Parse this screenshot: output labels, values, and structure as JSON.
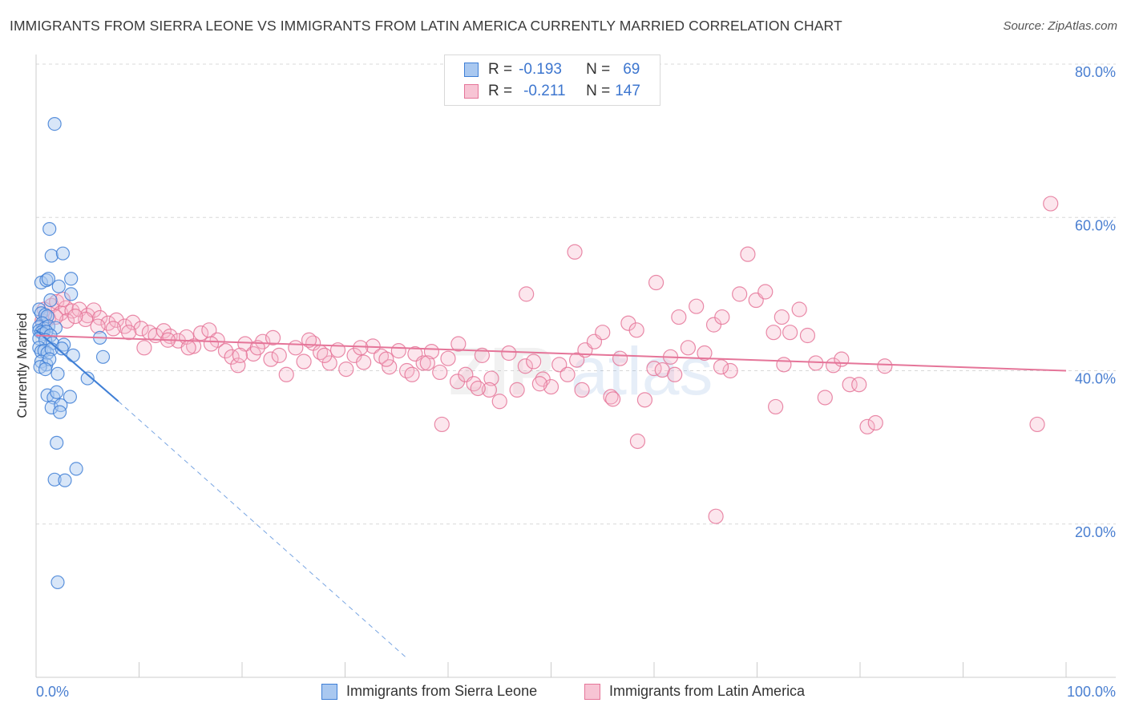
{
  "title": "IMMIGRANTS FROM SIERRA LEONE VS IMMIGRANTS FROM LATIN AMERICA CURRENTLY MARRIED CORRELATION CHART",
  "source": "Source: ZipAtlas.com",
  "legend": {
    "rows": [
      {
        "r_label": "R =",
        "r_value": "-0.193",
        "n_label": "N =",
        "n_value": "69"
      },
      {
        "r_label": "R =",
        "r_value": "-0.211",
        "n_label": "N =",
        "n_value": "147"
      }
    ]
  },
  "bottom_legend": [
    "Immigrants from Sierra Leone",
    "Immigrants from Latin America"
  ],
  "colors": {
    "blue_fill": "#a9c8f0",
    "blue_stroke": "#3f7fd6",
    "pink_fill": "#f7b6ca",
    "pink_stroke": "#e57599",
    "accent_text": "#4a7fd1",
    "grid": "#d8d8d8"
  },
  "chart_data": {
    "type": "scatter",
    "xlabel": "",
    "ylabel": "Currently Married",
    "xlim": [
      0,
      100
    ],
    "ylim": [
      0,
      80
    ],
    "x_tick_labels": [
      "0.0%",
      "100.0%"
    ],
    "y_ticks": [
      20,
      40,
      60,
      80
    ],
    "y_tick_labels": [
      "20.0%",
      "40.0%",
      "60.0%",
      "80.0%"
    ],
    "grid": true,
    "legend_position": "top-center",
    "watermark": "ZIPatlas",
    "series": [
      {
        "name": "Immigrants from Sierra Leone",
        "color": "#3f7fd6",
        "r": -0.193,
        "n": 69,
        "trend": {
          "x0": 0.0,
          "y0": 45.3,
          "x1": 8.0,
          "y1": 36.0,
          "dashed_to_x": 36.0,
          "dashed_to_y": 2.5
        },
        "points": [
          [
            1.8,
            72.2
          ],
          [
            1.3,
            58.5
          ],
          [
            1.5,
            55.0
          ],
          [
            2.6,
            55.3
          ],
          [
            0.5,
            51.5
          ],
          [
            1.0,
            51.8
          ],
          [
            1.2,
            52.0
          ],
          [
            2.2,
            51.0
          ],
          [
            3.4,
            52.0
          ],
          [
            3.4,
            50.0
          ],
          [
            1.4,
            49.2
          ],
          [
            0.3,
            48.0
          ],
          [
            0.5,
            47.5
          ],
          [
            0.9,
            47.3
          ],
          [
            1.1,
            47.1
          ],
          [
            0.6,
            46.2
          ],
          [
            0.3,
            45.7
          ],
          [
            0.8,
            45.5
          ],
          [
            1.2,
            45.8
          ],
          [
            1.9,
            45.6
          ],
          [
            0.3,
            45.2
          ],
          [
            0.5,
            45.0
          ],
          [
            0.7,
            44.8
          ],
          [
            1.0,
            45.1
          ],
          [
            1.4,
            44.6
          ],
          [
            0.3,
            44.2
          ],
          [
            0.9,
            44.0
          ],
          [
            1.6,
            43.6
          ],
          [
            2.7,
            43.4
          ],
          [
            0.3,
            43.0
          ],
          [
            0.5,
            42.5
          ],
          [
            0.8,
            42.6
          ],
          [
            1.1,
            42.3
          ],
          [
            1.5,
            42.8
          ],
          [
            2.5,
            42.9
          ],
          [
            3.6,
            42.0
          ],
          [
            6.2,
            44.3
          ],
          [
            6.5,
            41.8
          ],
          [
            0.5,
            41.2
          ],
          [
            1.0,
            40.8
          ],
          [
            1.3,
            41.5
          ],
          [
            0.4,
            40.5
          ],
          [
            0.9,
            40.2
          ],
          [
            2.1,
            39.6
          ],
          [
            5.0,
            39.0
          ],
          [
            1.1,
            36.8
          ],
          [
            1.7,
            36.5
          ],
          [
            2.0,
            37.2
          ],
          [
            3.3,
            36.6
          ],
          [
            1.5,
            35.2
          ],
          [
            2.4,
            35.5
          ],
          [
            2.3,
            34.6
          ],
          [
            2.0,
            30.6
          ],
          [
            3.9,
            27.2
          ],
          [
            1.8,
            25.8
          ],
          [
            2.8,
            25.7
          ],
          [
            2.1,
            12.4
          ]
        ]
      },
      {
        "name": "Immigrants from Latin America",
        "color": "#e57599",
        "r": -0.211,
        "n": 147,
        "trend": {
          "x0": 0.0,
          "y0": 44.6,
          "x1": 100.0,
          "y1": 40.0
        },
        "points": [
          [
            0.8,
            48.0
          ],
          [
            1.5,
            48.5
          ],
          [
            2.0,
            49.0
          ],
          [
            2.4,
            47.5
          ],
          [
            2.9,
            48.2
          ],
          [
            3.5,
            47.8
          ],
          [
            4.2,
            48.0
          ],
          [
            5.0,
            47.2
          ],
          [
            5.6,
            47.9
          ],
          [
            1.2,
            46.8
          ],
          [
            3.0,
            46.5
          ],
          [
            6.2,
            46.9
          ],
          [
            7.0,
            46.2
          ],
          [
            7.8,
            46.6
          ],
          [
            8.6,
            45.8
          ],
          [
            9.4,
            46.3
          ],
          [
            10.2,
            45.5
          ],
          [
            11.0,
            45.0
          ],
          [
            11.6,
            44.6
          ],
          [
            12.4,
            45.2
          ],
          [
            13.0,
            44.5
          ],
          [
            13.8,
            43.9
          ],
          [
            14.6,
            44.4
          ],
          [
            15.3,
            43.2
          ],
          [
            16.0,
            44.9
          ],
          [
            16.8,
            45.3
          ],
          [
            17.6,
            44.0
          ],
          [
            18.4,
            42.6
          ],
          [
            19.0,
            41.8
          ],
          [
            19.6,
            40.7
          ],
          [
            20.3,
            43.5
          ],
          [
            21.1,
            42.2
          ],
          [
            22.0,
            43.8
          ],
          [
            22.8,
            41.5
          ],
          [
            23.6,
            42.0
          ],
          [
            24.3,
            39.5
          ],
          [
            25.2,
            43.0
          ],
          [
            26.0,
            41.2
          ],
          [
            26.9,
            43.6
          ],
          [
            27.6,
            42.4
          ],
          [
            28.5,
            41.0
          ],
          [
            29.3,
            42.7
          ],
          [
            30.1,
            40.2
          ],
          [
            30.9,
            42.0
          ],
          [
            31.8,
            41.1
          ],
          [
            32.7,
            43.2
          ],
          [
            33.5,
            41.9
          ],
          [
            34.3,
            40.5
          ],
          [
            35.2,
            42.6
          ],
          [
            36.0,
            40.0
          ],
          [
            36.8,
            42.2
          ],
          [
            37.6,
            41.0
          ],
          [
            38.4,
            42.5
          ],
          [
            39.2,
            39.8
          ],
          [
            40.0,
            41.6
          ],
          [
            40.9,
            38.6
          ],
          [
            41.7,
            39.5
          ],
          [
            42.5,
            38.3
          ],
          [
            43.3,
            42.0
          ],
          [
            44.2,
            39.0
          ],
          [
            45.0,
            36.0
          ],
          [
            45.9,
            42.3
          ],
          [
            46.7,
            37.5
          ],
          [
            47.5,
            40.6
          ],
          [
            48.3,
            41.2
          ],
          [
            49.2,
            38.9
          ],
          [
            50.0,
            37.9
          ],
          [
            50.8,
            40.8
          ],
          [
            51.6,
            39.5
          ],
          [
            52.5,
            41.4
          ],
          [
            53.3,
            42.7
          ],
          [
            54.2,
            43.8
          ],
          [
            55.0,
            45.0
          ],
          [
            55.8,
            36.6
          ],
          [
            56.7,
            41.6
          ],
          [
            57.5,
            46.2
          ],
          [
            58.3,
            45.3
          ],
          [
            59.1,
            36.2
          ],
          [
            60.0,
            40.3
          ],
          [
            60.8,
            40.1
          ],
          [
            61.6,
            41.8
          ],
          [
            62.4,
            47.0
          ],
          [
            63.3,
            43.0
          ],
          [
            64.1,
            48.4
          ],
          [
            64.9,
            42.3
          ],
          [
            65.8,
            46.0
          ],
          [
            66.6,
            47.0
          ],
          [
            67.4,
            40.0
          ],
          [
            68.3,
            50.0
          ],
          [
            69.1,
            55.2
          ],
          [
            69.9,
            49.2
          ],
          [
            70.8,
            50.3
          ],
          [
            71.6,
            45.0
          ],
          [
            72.4,
            47.0
          ],
          [
            73.2,
            45.0
          ],
          [
            74.1,
            48.0
          ],
          [
            74.9,
            44.6
          ],
          [
            75.7,
            41.0
          ],
          [
            76.6,
            36.5
          ],
          [
            77.4,
            40.7
          ],
          [
            78.2,
            41.5
          ],
          [
            79.0,
            38.2
          ],
          [
            79.9,
            38.2
          ],
          [
            80.7,
            32.7
          ],
          [
            81.5,
            33.2
          ],
          [
            82.4,
            40.6
          ],
          [
            52.3,
            55.5
          ],
          [
            72.6,
            40.8
          ],
          [
            66.0,
            21.0
          ],
          [
            58.4,
            30.8
          ],
          [
            60.2,
            51.5
          ],
          [
            39.4,
            33.0
          ],
          [
            47.6,
            50.0
          ],
          [
            98.5,
            61.8
          ],
          [
            97.2,
            33.0
          ],
          [
            71.8,
            35.3
          ],
          [
            62.0,
            39.5
          ],
          [
            66.5,
            40.5
          ],
          [
            53.0,
            37.5
          ],
          [
            56.0,
            36.3
          ],
          [
            48.9,
            38.3
          ],
          [
            44.0,
            37.5
          ],
          [
            42.9,
            37.7
          ],
          [
            41.0,
            43.5
          ],
          [
            38.0,
            41.0
          ],
          [
            36.5,
            39.5
          ],
          [
            34.0,
            41.5
          ],
          [
            31.5,
            43.0
          ],
          [
            28.0,
            42.0
          ],
          [
            26.5,
            44.0
          ],
          [
            23.0,
            44.3
          ],
          [
            21.5,
            43.0
          ],
          [
            19.8,
            42.0
          ],
          [
            17.0,
            43.5
          ],
          [
            14.8,
            43.0
          ],
          [
            12.8,
            44.0
          ],
          [
            10.5,
            43.0
          ],
          [
            9.0,
            45.0
          ],
          [
            7.5,
            45.5
          ],
          [
            6.0,
            45.8
          ],
          [
            4.8,
            46.7
          ],
          [
            3.8,
            47.1
          ],
          [
            2.6,
            49.3
          ],
          [
            0.6,
            46.5
          ],
          [
            1.9,
            47.0
          ]
        ]
      }
    ]
  }
}
